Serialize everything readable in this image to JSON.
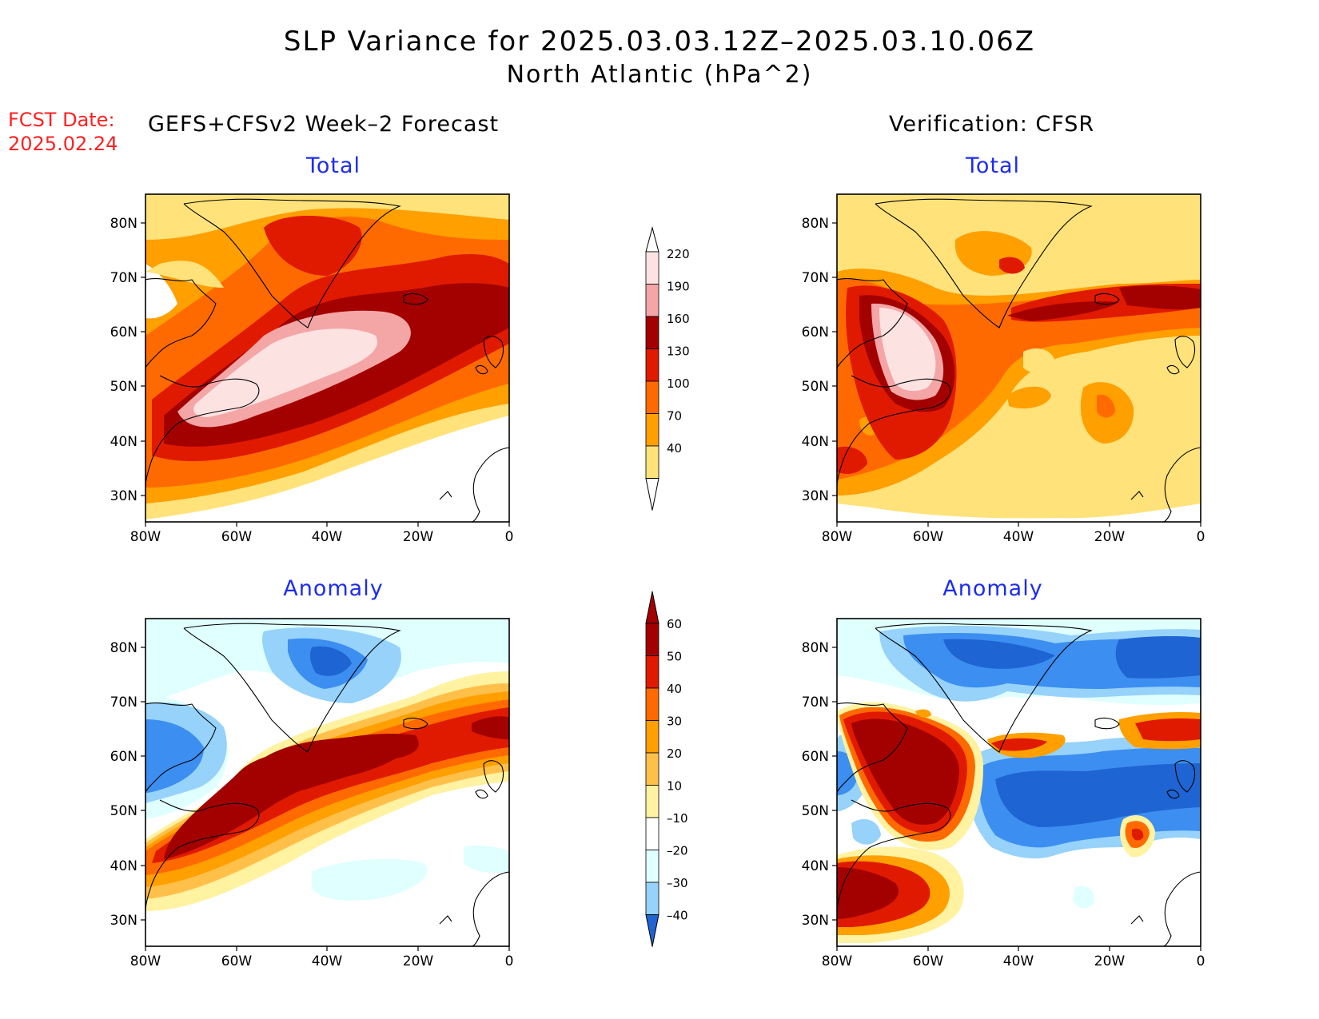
{
  "title": {
    "line1": "SLP Variance for 2025.03.03.12Z–2025.03.10.06Z",
    "line2": "North Atlantic (hPa^2)"
  },
  "forecast_date": {
    "label": "FCST Date:",
    "value": "2025.02.24"
  },
  "columns": {
    "left_heading": "GEFS+CFSv2 Week–2 Forecast",
    "right_heading": "Verification: CFSR"
  },
  "panels": {
    "total_label": "Total",
    "anomaly_label": "Anomaly"
  },
  "axes": {
    "lat_ticks": [
      "80N",
      "70N",
      "60N",
      "50N",
      "40N",
      "30N"
    ],
    "lon_ticks": [
      "80W",
      "60W",
      "40W",
      "20W",
      "0"
    ]
  },
  "colorbars": {
    "total": {
      "levels": [
        "220",
        "190",
        "160",
        "130",
        "100",
        "70",
        "40"
      ],
      "colors": [
        "#fde2e2",
        "#f4a6a6",
        "#a30000",
        "#e01a00",
        "#ff6a00",
        "#ff9f00",
        "#ffe27a"
      ]
    },
    "anomaly": {
      "levels": [
        "60",
        "50",
        "40",
        "30",
        "20",
        "10",
        "–10",
        "–20",
        "–30",
        "–40"
      ],
      "colors": [
        "#a30000",
        "#e01a00",
        "#ff6a00",
        "#ff9f00",
        "#ffc04a",
        "#fff2a0",
        "#ffffff",
        "#e0ffff",
        "#96d2fa",
        "#3c8ef0",
        "#1e64d2"
      ]
    }
  }
}
